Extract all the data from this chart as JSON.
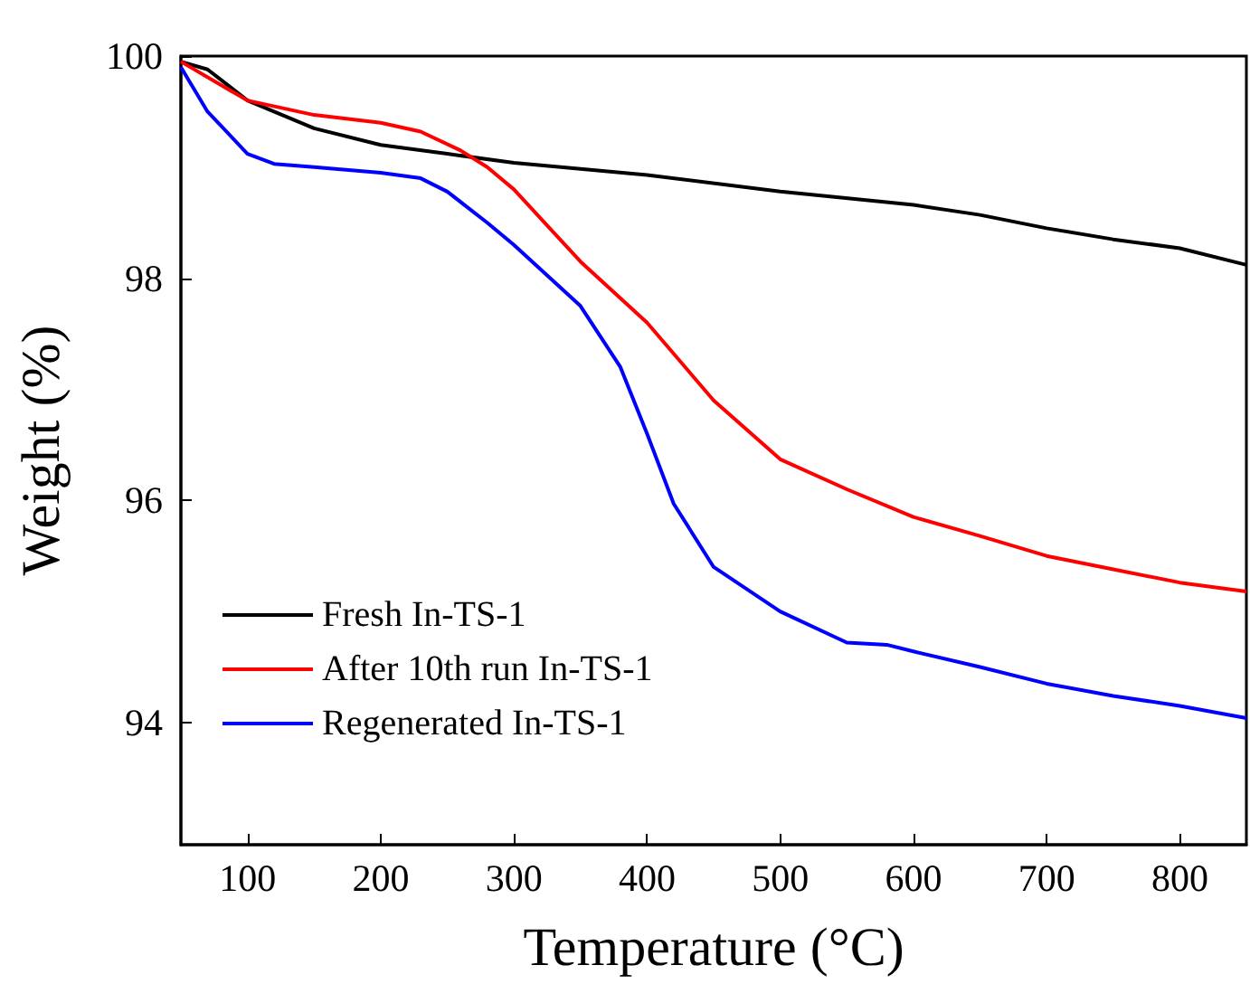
{
  "chart_data": {
    "type": "line",
    "xlabel": "Temperature (°C)",
    "ylabel": "Weight (%)",
    "xlim": [
      50,
      850
    ],
    "xticks": [
      100,
      200,
      300,
      400,
      500,
      600,
      700,
      800
    ],
    "ylim": [
      92.9,
      100
    ],
    "yticks": [
      94,
      96,
      98,
      100
    ],
    "grid": false,
    "legend": "bottom left",
    "marker": "none",
    "line_style": "solid",
    "series": [
      {
        "name": "Fresh In-TS-1",
        "color": "#000000",
        "x": [
          50,
          70,
          100,
          150,
          200,
          250,
          300,
          400,
          500,
          600,
          650,
          700,
          750,
          800,
          850
        ],
        "values": [
          99.95,
          99.88,
          99.6,
          99.35,
          99.2,
          99.12,
          99.04,
          98.93,
          98.78,
          98.66,
          98.57,
          98.45,
          98.35,
          98.27,
          98.12
        ]
      },
      {
        "name": "After 10th run In-TS-1",
        "color": "#ff0000",
        "x": [
          50,
          100,
          150,
          200,
          230,
          260,
          280,
          300,
          350,
          400,
          450,
          500,
          550,
          600,
          650,
          700,
          750,
          800,
          850
        ],
        "values": [
          99.95,
          99.6,
          99.47,
          99.4,
          99.32,
          99.15,
          99.0,
          98.8,
          98.15,
          97.6,
          96.9,
          96.37,
          96.1,
          95.85,
          95.68,
          95.5,
          95.38,
          95.26,
          95.18
        ]
      },
      {
        "name": "Regenerated In-TS-1",
        "color": "#0000ff",
        "x": [
          50,
          70,
          100,
          120,
          150,
          200,
          230,
          250,
          280,
          300,
          350,
          380,
          400,
          420,
          450,
          500,
          550,
          580,
          600,
          650,
          700,
          750,
          800,
          850
        ],
        "values": [
          99.9,
          99.5,
          99.12,
          99.03,
          99.0,
          98.95,
          98.9,
          98.78,
          98.5,
          98.3,
          97.75,
          97.2,
          96.6,
          95.97,
          95.4,
          95.0,
          94.72,
          94.7,
          94.64,
          94.5,
          94.35,
          94.24,
          94.15,
          94.04
        ]
      }
    ]
  }
}
